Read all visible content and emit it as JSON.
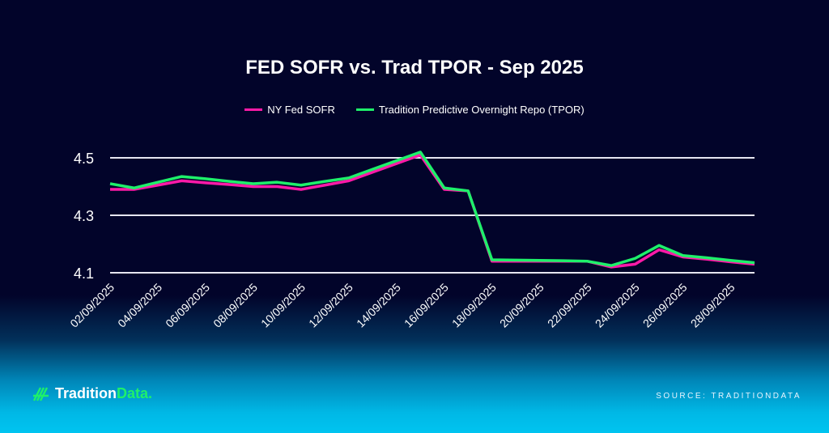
{
  "chart_data": {
    "type": "line",
    "title": "FED SOFR vs. Trad TPOR - Sep 2025",
    "xlabel": "",
    "ylabel": "",
    "ylim": [
      4.1,
      4.5
    ],
    "yticks": [
      "4.5",
      "4.3",
      "4.1"
    ],
    "ytick_values": [
      4.5,
      4.3,
      4.1
    ],
    "grid": true,
    "legend_position": "top-center",
    "categories": [
      "02/09/2025",
      "03/09/2025",
      "04/09/2025",
      "05/09/2025",
      "06/09/2025",
      "07/09/2025",
      "08/09/2025",
      "09/09/2025",
      "10/09/2025",
      "11/09/2025",
      "12/09/2025",
      "13/09/2025",
      "14/09/2025",
      "15/09/2025",
      "16/09/2025",
      "17/09/2025",
      "18/09/2025",
      "19/09/2025",
      "20/09/2025",
      "21/09/2025",
      "22/09/2025",
      "23/09/2025",
      "24/09/2025",
      "25/09/2025",
      "26/09/2025",
      "27/09/2025",
      "28/09/2025",
      "29/09/2025"
    ],
    "xtick_labels": [
      "02/09/2025",
      "04/09/2025",
      "06/09/2025",
      "08/09/2025",
      "10/09/2025",
      "12/09/2025",
      "14/09/2025",
      "16/09/2025",
      "18/09/2025",
      "20/09/2025",
      "22/09/2025",
      "24/09/2025",
      "26/09/2025",
      "28/09/2025"
    ],
    "series": [
      {
        "name": "NY Fed SOFR",
        "color": "#ff1aa8",
        "values": [
          4.39,
          4.39,
          4.405,
          4.42,
          4.413,
          4.407,
          4.4,
          4.4,
          4.39,
          4.405,
          4.42,
          4.45,
          4.48,
          4.51,
          4.39,
          4.385,
          4.14,
          4.14,
          4.14,
          4.14,
          4.14,
          4.12,
          4.13,
          4.18,
          4.155,
          4.147,
          4.138,
          4.13
        ]
      },
      {
        "name": "Tradition Predictive Overnight Repo (TPOR)",
        "color": "#1ef06a",
        "values": [
          4.41,
          4.395,
          4.415,
          4.435,
          4.427,
          4.418,
          4.41,
          4.415,
          4.405,
          4.418,
          4.43,
          4.46,
          4.49,
          4.52,
          4.395,
          4.385,
          4.145,
          4.144,
          4.143,
          4.142,
          4.14,
          4.125,
          4.15,
          4.195,
          4.16,
          4.152,
          4.143,
          4.135
        ]
      }
    ]
  },
  "footer": {
    "logo_main": "Tradition",
    "logo_accent": "Data.",
    "source": "SOURCE: TRADITIONDATA"
  }
}
